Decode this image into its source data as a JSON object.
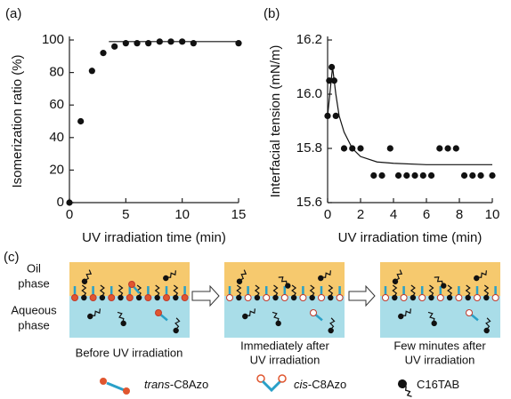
{
  "chart_data": [
    {
      "type": "scatter",
      "label": "(a)",
      "x_label": "UV irradiation time (min)",
      "y_label": "Isomerization ratio (%)",
      "color": "#111111",
      "x": [
        0,
        1,
        2,
        3,
        4,
        5,
        6,
        7,
        8,
        9,
        10,
        11,
        15
      ],
      "values": [
        0,
        50,
        81,
        92,
        96,
        98,
        98,
        98,
        99,
        99,
        99,
        98,
        98
      ],
      "fit": {
        "x": [
          3.5,
          15
        ],
        "values": [
          99,
          99
        ]
      },
      "xlim": [
        0,
        15
      ],
      "xticks": [
        0,
        5,
        10,
        15
      ],
      "ylim": [
        0,
        100
      ],
      "yticks": [
        0,
        20,
        40,
        60,
        80,
        100
      ]
    },
    {
      "type": "scatter",
      "label": "(b)",
      "x_label": "UV irradiation time (min)",
      "y_label": "Interfacial tension (mN/m)",
      "color": "#111111",
      "x": [
        0,
        0.1,
        0.25,
        0.4,
        0.5,
        1,
        1.5,
        2,
        2.8,
        3.3,
        3.8,
        4.3,
        4.8,
        5.3,
        5.8,
        6.3,
        6.8,
        7.3,
        7.8,
        8.3,
        8.8,
        9.3,
        10
      ],
      "values": [
        15.92,
        16.05,
        16.1,
        16.05,
        15.92,
        15.8,
        15.8,
        15.8,
        15.7,
        15.7,
        15.8,
        15.7,
        15.7,
        15.7,
        15.7,
        15.7,
        15.8,
        15.8,
        15.8,
        15.7,
        15.7,
        15.7,
        15.7
      ],
      "fit": {
        "x": [
          0,
          0.3,
          0.5,
          0.7,
          1,
          1.5,
          2,
          3,
          4,
          6,
          8,
          10
        ],
        "values": [
          15.92,
          16.1,
          16.0,
          15.92,
          15.86,
          15.8,
          15.77,
          15.75,
          15.745,
          15.74,
          15.74,
          15.74
        ]
      },
      "xlim": [
        0,
        10
      ],
      "xticks": [
        0,
        2,
        4,
        6,
        8,
        10
      ],
      "ylim": [
        15.6,
        16.2
      ],
      "yticks": [
        15.6,
        15.8,
        {
          "value": 16,
          "label": "16.0"
        },
        16.2
      ]
    }
  ],
  "panel_c": {
    "label": "(c)",
    "oil": [
      "Oil",
      "phase"
    ],
    "aqueous": [
      "Aqueous",
      "phase"
    ],
    "captions": [
      [
        "Before UV irradiation"
      ],
      [
        "Immediately after",
        "UV irradiation"
      ],
      [
        "Few minutes after",
        "UV irradiation"
      ]
    ],
    "legend": [
      {
        "italic": "trans",
        "rest": "-C8Azo"
      },
      {
        "italic": "cis",
        "rest": "-C8Azo"
      },
      {
        "italic": "",
        "rest": "C16TAB"
      }
    ]
  }
}
